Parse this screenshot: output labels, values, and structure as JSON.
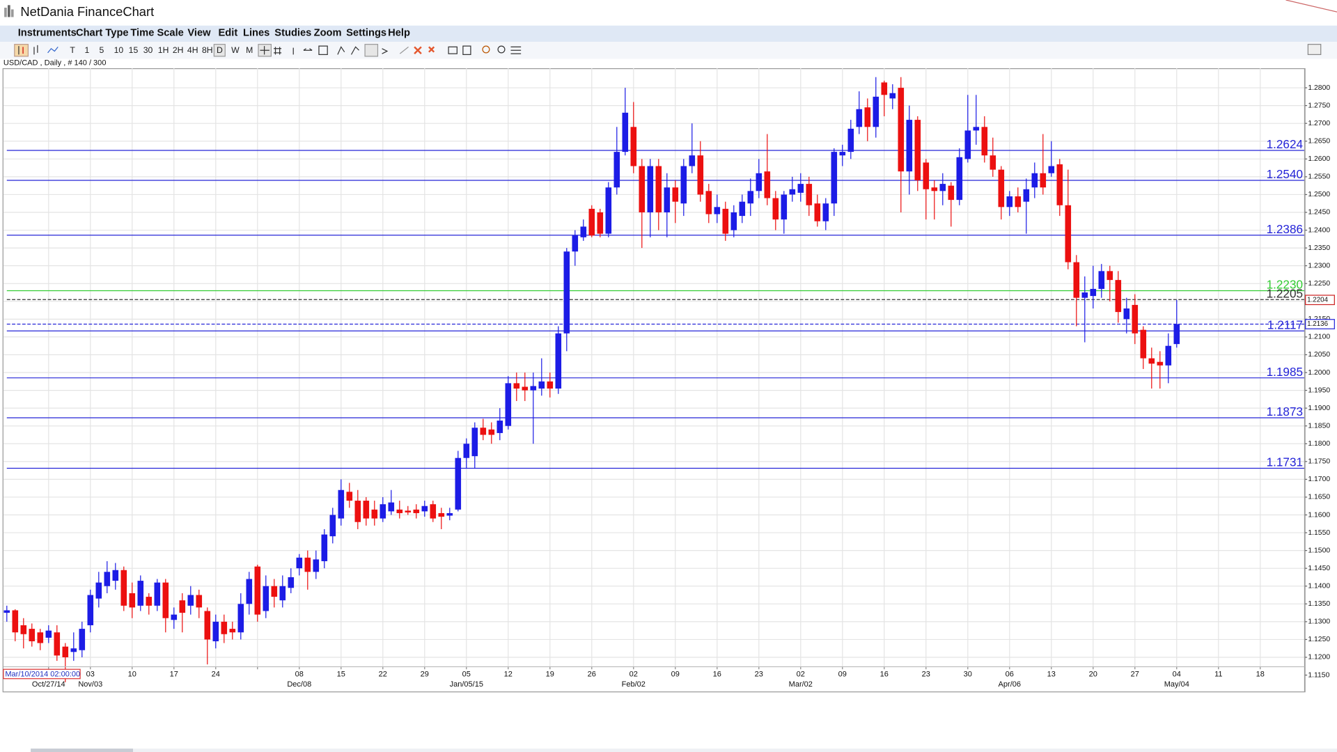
{
  "window": {
    "title": "NetDania FinanceChart"
  },
  "menu": [
    "Instruments",
    "Chart Type",
    "Time Scale",
    "View",
    "Edit",
    "Lines",
    "Studies",
    "Zoom",
    "Settings",
    "Help"
  ],
  "toolbar": [
    "T",
    "1",
    "5",
    "10",
    "15",
    "30",
    "1H",
    "2H",
    "4H",
    "8H",
    "D",
    "W",
    "M"
  ],
  "info": "USD/CAD , Daily , # 140 / 300",
  "crosshair_time": "Mar/10/2014 02:00:00",
  "chart_data": {
    "type": "candlestick",
    "up_color": "#1c1ce6",
    "down_color": "#ec1010",
    "grid": true,
    "ylim": [
      1.1104,
      1.2855
    ],
    "yticks": [
      {
        "value": 1.115,
        "label": "1.1150"
      },
      {
        "value": 1.12,
        "label": "1.1200"
      },
      {
        "value": 1.125,
        "label": "1.1250"
      },
      {
        "value": 1.13,
        "label": "1.1300"
      },
      {
        "value": 1.135,
        "label": "1.1350"
      },
      {
        "value": 1.14,
        "label": "1.1400"
      },
      {
        "value": 1.145,
        "label": "1.1450"
      },
      {
        "value": 1.15,
        "label": "1.1500"
      },
      {
        "value": 1.155,
        "label": "1.1550"
      },
      {
        "value": 1.16,
        "label": "1.1600"
      },
      {
        "value": 1.165,
        "label": "1.1650"
      },
      {
        "value": 1.17,
        "label": "1.1700"
      },
      {
        "value": 1.175,
        "label": "1.1750"
      },
      {
        "value": 1.18,
        "label": "1.1800"
      },
      {
        "value": 1.185,
        "label": "1.1850"
      },
      {
        "value": 1.19,
        "label": "1.1900"
      },
      {
        "value": 1.195,
        "label": "1.1950"
      },
      {
        "value": 1.2,
        "label": "1.2000"
      },
      {
        "value": 1.205,
        "label": "1.2050"
      },
      {
        "value": 1.21,
        "label": "1.2100"
      },
      {
        "value": 1.215,
        "label": "1.2150"
      },
      {
        "value": 1.22,
        "label": "1.2200"
      },
      {
        "value": 1.225,
        "label": "1.2250"
      },
      {
        "value": 1.23,
        "label": "1.2300"
      },
      {
        "value": 1.235,
        "label": "1.2350"
      },
      {
        "value": 1.24,
        "label": "1.2400"
      },
      {
        "value": 1.245,
        "label": "1.2450"
      },
      {
        "value": 1.25,
        "label": "1.2500"
      },
      {
        "value": 1.255,
        "label": "1.2550"
      },
      {
        "value": 1.26,
        "label": "1.2600"
      },
      {
        "value": 1.265,
        "label": "1.2650"
      },
      {
        "value": 1.27,
        "label": "1.2700"
      },
      {
        "value": 1.275,
        "label": "1.2750"
      },
      {
        "value": 1.28,
        "label": "1.2800"
      }
    ],
    "xticks_day": [
      null,
      "03",
      "10",
      "17",
      "24",
      null,
      "08",
      "15",
      "22",
      "29",
      "05",
      "12",
      "19",
      "26",
      "02",
      "09",
      "16",
      "23",
      "02",
      "09",
      "16",
      "23",
      "30",
      "06",
      "13",
      "20",
      "27",
      "04",
      "11",
      "18"
    ],
    "xticks_month": [
      "Oct/27/14",
      "Nov/03",
      null,
      null,
      null,
      null,
      "Dec/08",
      null,
      null,
      null,
      "Jan/05/15",
      null,
      null,
      null,
      "Feb/02",
      null,
      null,
      null,
      "Mar/02",
      null,
      null,
      null,
      null,
      "Apr/06",
      null,
      null,
      null,
      "May/04",
      null,
      null
    ],
    "open": [
      1.1325,
      1.1332,
      1.129,
      1.128,
      1.127,
      1.1255,
      1.127,
      1.123,
      1.1215,
      1.122,
      1.129,
      1.1365,
      1.14,
      1.1415,
      1.1445,
      1.138,
      1.1345,
      1.137,
      1.1345,
      1.141,
      1.1305,
      1.136,
      1.1345,
      1.1375,
      1.133,
      1.1245,
      1.13,
      1.128,
      1.127,
      1.135,
      1.1455,
      1.133,
      1.14,
      1.136,
      1.1395,
      1.145,
      1.148,
      1.144,
      1.147,
      1.154,
      1.159,
      1.1665,
      1.164,
      1.164,
      1.1615,
      1.159,
      1.161,
      1.1615,
      1.1612,
      1.1615,
      1.161,
      1.163,
      1.1605,
      1.1598,
      1.1615,
      1.176,
      1.1765,
      1.1845,
      1.184,
      1.183,
      1.185,
      1.197,
      1.196,
      1.195,
      1.1955,
      1.1975,
      1.1955,
      1.211,
      1.234,
      1.238,
      1.246,
      1.245,
      1.239,
      1.252,
      1.262,
      1.269,
      1.258,
      1.245,
      1.258,
      1.245,
      1.252,
      1.2475,
      1.258,
      1.261,
      1.251,
      1.2445,
      1.246,
      1.24,
      1.244,
      1.2475,
      1.251,
      1.2565,
      1.249,
      1.243,
      1.25,
      1.2505,
      1.253,
      1.2475,
      1.2425,
      1.2475,
      1.261,
      1.262,
      1.269,
      1.2745,
      1.269,
      1.2815,
      1.277,
      1.28,
      1.2565,
      1.271,
      1.259,
      1.252,
      1.251,
      1.2525,
      1.2485,
      1.26,
      1.268,
      1.269,
      1.261,
      1.257,
      1.2465,
      1.2495,
      1.248,
      1.252,
      1.256,
      1.256,
      1.2585,
      1.247,
      1.231,
      1.221,
      1.2215,
      1.2235,
      1.2285,
      1.226,
      1.215,
      1.219,
      1.212,
      1.204,
      1.203,
      1.202,
      1.208
    ],
    "high": [
      1.1345,
      1.1335,
      1.131,
      1.1295,
      1.128,
      1.129,
      1.129,
      1.124,
      1.127,
      1.13,
      1.139,
      1.144,
      1.147,
      1.1465,
      1.1455,
      1.141,
      1.143,
      1.138,
      1.142,
      1.142,
      1.134,
      1.138,
      1.14,
      1.139,
      1.134,
      1.132,
      1.132,
      1.13,
      1.138,
      1.144,
      1.146,
      1.143,
      1.142,
      1.143,
      1.145,
      1.149,
      1.15,
      1.15,
      1.156,
      1.162,
      1.17,
      1.169,
      1.167,
      1.165,
      1.164,
      1.165,
      1.167,
      1.164,
      1.1625,
      1.163,
      1.164,
      1.164,
      1.162,
      1.162,
      1.178,
      1.1815,
      1.186,
      1.187,
      1.186,
      1.19,
      1.199,
      1.2,
      1.2,
      1.2,
      1.204,
      1.2,
      1.213,
      1.235,
      1.24,
      1.243,
      1.247,
      1.246,
      1.2535,
      1.269,
      1.28,
      1.276,
      1.26,
      1.26,
      1.26,
      1.256,
      1.254,
      1.26,
      1.27,
      1.265,
      1.253,
      1.25,
      1.248,
      1.247,
      1.25,
      1.2545,
      1.26,
      1.267,
      1.251,
      1.251,
      1.255,
      1.256,
      1.255,
      1.25,
      1.249,
      1.263,
      1.264,
      1.271,
      1.279,
      1.277,
      1.283,
      1.282,
      1.281,
      1.283,
      1.275,
      1.272,
      1.26,
      1.254,
      1.256,
      1.2535,
      1.263,
      1.278,
      1.278,
      1.272,
      1.266,
      1.258,
      1.251,
      1.252,
      1.2545,
      1.259,
      1.267,
      1.265,
      1.26,
      1.257,
      1.233,
      1.227,
      1.23,
      1.2305,
      1.23,
      1.2285,
      1.221,
      1.222,
      1.213,
      1.207,
      1.206,
      1.211,
      1.2204
    ],
    "low": [
      1.13,
      1.1245,
      1.1225,
      1.123,
      1.122,
      1.124,
      1.119,
      1.113,
      1.119,
      1.12,
      1.127,
      1.134,
      1.138,
      1.139,
      1.133,
      1.131,
      1.133,
      1.132,
      1.133,
      1.127,
      1.128,
      1.127,
      1.132,
      1.131,
      1.118,
      1.1225,
      1.124,
      1.125,
      1.125,
      1.132,
      1.13,
      1.131,
      1.134,
      1.134,
      1.138,
      1.143,
      1.139,
      1.142,
      1.145,
      1.152,
      1.157,
      1.162,
      1.156,
      1.157,
      1.157,
      1.158,
      1.16,
      1.159,
      1.16,
      1.159,
      1.1595,
      1.158,
      1.156,
      1.1585,
      1.161,
      1.173,
      1.173,
      1.181,
      1.18,
      1.181,
      1.184,
      1.192,
      1.192,
      1.18,
      1.1935,
      1.193,
      1.194,
      1.206,
      1.23,
      1.237,
      1.238,
      1.238,
      1.238,
      1.25,
      1.261,
      1.256,
      1.235,
      1.238,
      1.24,
      1.238,
      1.242,
      1.244,
      1.256,
      1.248,
      1.242,
      1.242,
      1.237,
      1.238,
      1.242,
      1.244,
      1.249,
      1.247,
      1.24,
      1.239,
      1.248,
      1.248,
      1.244,
      1.241,
      1.24,
      1.244,
      1.258,
      1.26,
      1.267,
      1.265,
      1.266,
      1.272,
      1.274,
      1.245,
      1.25,
      1.251,
      1.243,
      1.243,
      1.247,
      1.241,
      1.247,
      1.259,
      1.264,
      1.259,
      1.255,
      1.243,
      1.244,
      1.245,
      1.239,
      1.249,
      1.25,
      1.255,
      1.244,
      1.229,
      1.213,
      1.2085,
      1.218,
      1.221,
      1.22,
      1.214,
      1.211,
      1.208,
      1.201,
      1.1955,
      1.1955,
      1.197,
      1.207
    ],
    "close": [
      1.1332,
      1.127,
      1.1265,
      1.1245,
      1.124,
      1.1275,
      1.1205,
      1.12,
      1.1225,
      1.128,
      1.1375,
      1.141,
      1.144,
      1.1445,
      1.1345,
      1.134,
      1.1415,
      1.1345,
      1.141,
      1.131,
      1.132,
      1.1325,
      1.1375,
      1.134,
      1.125,
      1.13,
      1.1265,
      1.127,
      1.135,
      1.142,
      1.132,
      1.14,
      1.137,
      1.14,
      1.1425,
      1.148,
      1.144,
      1.1475,
      1.1545,
      1.16,
      1.167,
      1.164,
      1.158,
      1.159,
      1.159,
      1.163,
      1.1635,
      1.1605,
      1.1607,
      1.1605,
      1.1625,
      1.159,
      1.1595,
      1.1605,
      1.176,
      1.18,
      1.1845,
      1.1825,
      1.1825,
      1.1865,
      1.197,
      1.1955,
      1.195,
      1.1962,
      1.1975,
      1.1955,
      1.211,
      1.234,
      1.2385,
      1.241,
      1.2385,
      1.239,
      1.252,
      1.262,
      1.273,
      1.258,
      1.245,
      1.258,
      1.245,
      1.252,
      1.248,
      1.258,
      1.261,
      1.25,
      1.2445,
      1.2465,
      1.239,
      1.245,
      1.248,
      1.251,
      1.256,
      1.249,
      1.243,
      1.25,
      1.2515,
      1.253,
      1.247,
      1.2425,
      1.2475,
      1.262,
      1.262,
      1.2685,
      1.274,
      1.269,
      1.2775,
      1.278,
      1.2785,
      1.2565,
      1.271,
      1.254,
      1.2515,
      1.251,
      1.253,
      1.2485,
      1.2605,
      1.268,
      1.269,
      1.261,
      1.257,
      1.2465,
      1.2495,
      1.2465,
      1.2515,
      1.256,
      1.252,
      1.258,
      1.247,
      1.231,
      1.221,
      1.2225,
      1.2235,
      1.2285,
      1.226,
      1.217,
      1.218,
      1.211,
      1.204,
      1.2025,
      1.202,
      1.2075,
      1.2136
    ],
    "levels": [
      {
        "value": 1.2624,
        "label": "1.2624",
        "color": "#2424d8",
        "style": "solid"
      },
      {
        "value": 1.254,
        "label": "1.2540",
        "color": "#2424d8",
        "style": "solid"
      },
      {
        "value": 1.2386,
        "label": "1.2386",
        "color": "#2424d8",
        "style": "solid"
      },
      {
        "value": 1.223,
        "label": "1.2230",
        "color": "#33cc33",
        "style": "solid"
      },
      {
        "value": 1.2205,
        "label": "1.2205",
        "color": "#333333",
        "style": "dashed"
      },
      {
        "value": 1.2117,
        "label": "1.2117",
        "color": "#2424d8",
        "style": "solid"
      },
      {
        "value": 1.1985,
        "label": "1.1985",
        "color": "#2424d8",
        "style": "solid"
      },
      {
        "value": 1.1873,
        "label": "1.1873",
        "color": "#2424d8",
        "style": "solid"
      },
      {
        "value": 1.1731,
        "label": "1.1731",
        "color": "#2424d8",
        "style": "solid"
      }
    ],
    "price_tags": [
      {
        "value": 1.2204,
        "label": "1.2204",
        "color": "#cc2222",
        "dashed_line": false
      },
      {
        "value": 1.2136,
        "label": "1.2136",
        "color": "#2424d8",
        "dashed_line": true
      }
    ]
  }
}
